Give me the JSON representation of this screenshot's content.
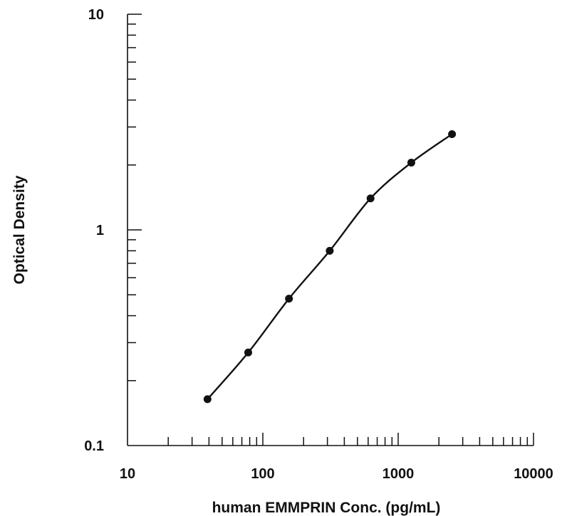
{
  "chart_data": {
    "type": "scatter",
    "title": "",
    "xlabel": "human EMMPRIN Conc. (pg/mL)",
    "ylabel": "Optical Density",
    "xscale": "log",
    "yscale": "log",
    "xlim": [
      10,
      10000
    ],
    "ylim": [
      0.1,
      10
    ],
    "x_tick_labels": [
      "10",
      "100",
      "1000",
      "10000"
    ],
    "y_tick_labels": [
      "0.1",
      "1",
      "10"
    ],
    "grid": false,
    "legend": "none",
    "series": [
      {
        "x": [
          39,
          78,
          156,
          312,
          625,
          1250,
          2500
        ],
        "y": [
          0.164,
          0.27,
          0.48,
          0.8,
          1.4,
          2.05,
          2.78
        ],
        "marker": "filled-circle",
        "fit_curve": "smooth",
        "color": "#111111"
      }
    ]
  }
}
